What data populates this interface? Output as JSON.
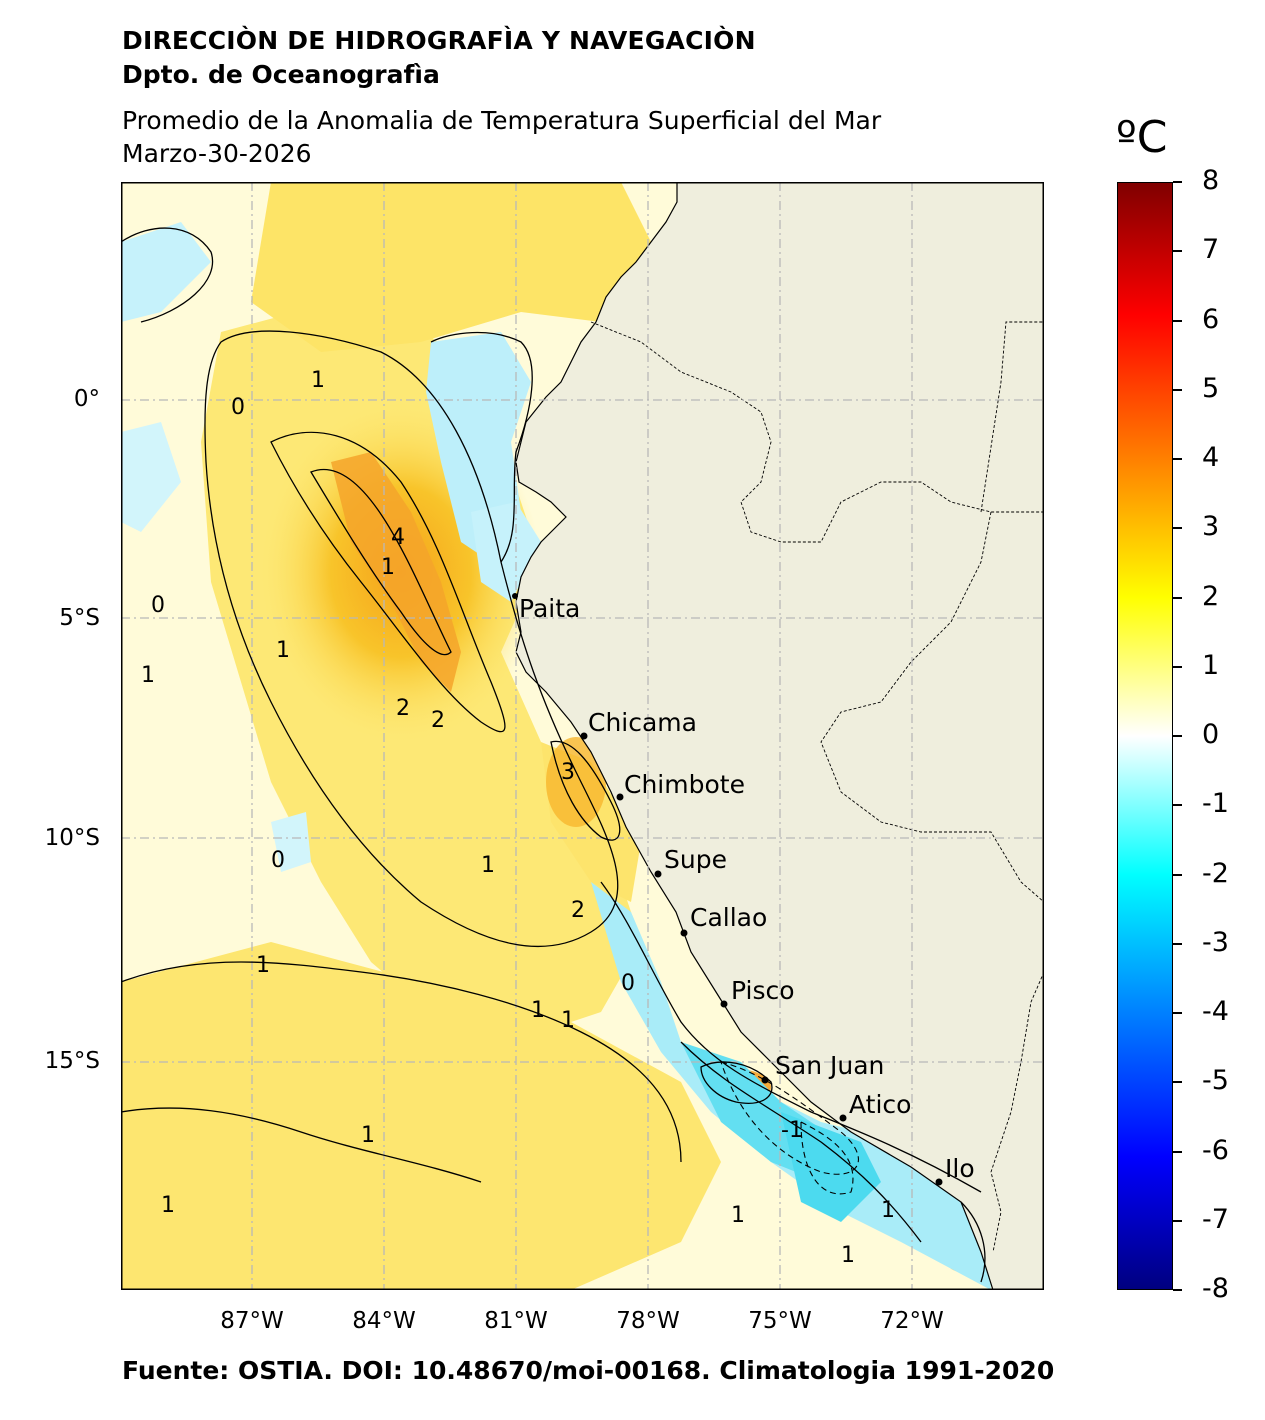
{
  "header": {
    "institution": "DIRECCIÒN DE HIDROGRAFÌA Y NAVEGACIÒN",
    "department": "Dpto. de Oceanografìa",
    "product": "Promedio de la Anomalia de Temperatura Superficial del Mar",
    "date": "Marzo-30-2026"
  },
  "colorbar": {
    "unit": "ºC",
    "ticks": [
      "8",
      "7",
      "6",
      "5",
      "4",
      "3",
      "2",
      "1",
      "0",
      "-1",
      "-2",
      "-3",
      "-4",
      "-5",
      "-6",
      "-7",
      "-8"
    ],
    "range": [
      -8,
      8
    ],
    "colors": [
      "#00007f",
      "#0000ff",
      "#0080ff",
      "#00ffff",
      "#ffffff",
      "#ffff00",
      "#ff8000",
      "#ff0000",
      "#7f0000"
    ]
  },
  "axes": {
    "lat_labels": [
      "0°",
      "5°S",
      "10°S",
      "15°S"
    ],
    "lon_labels": [
      "87°W",
      "84°W",
      "81°W",
      "78°W",
      "75°W",
      "72°W"
    ]
  },
  "map": {
    "land_color": "#efeedd",
    "ocean_background": "#fffbd9",
    "cities": [
      {
        "name": "Paita",
        "lon": -81.1,
        "lat": -5.1
      },
      {
        "name": "Chicama",
        "lon": -79.4,
        "lat": -7.8
      },
      {
        "name": "Chimbote",
        "lon": -78.6,
        "lat": -9.1
      },
      {
        "name": "Supe",
        "lon": -77.8,
        "lat": -10.8
      },
      {
        "name": "Callao",
        "lon": -77.2,
        "lat": -12.1
      },
      {
        "name": "Pisco",
        "lon": -76.3,
        "lat": -13.7
      },
      {
        "name": "San Juan",
        "lon": -75.2,
        "lat": -15.4
      },
      {
        "name": "Atico",
        "lon": -73.7,
        "lat": -16.2
      },
      {
        "name": "Ilo",
        "lon": -71.3,
        "lat": -17.6
      }
    ],
    "contour_labels": [
      "0",
      "1",
      "1",
      "1",
      "1",
      "1",
      "2",
      "2",
      "2",
      "3",
      "4",
      "1",
      "0",
      "1",
      "1",
      "1",
      "0",
      "-1",
      "1",
      "1",
      "1",
      "0",
      "1"
    ]
  },
  "footer": "Fuente: OSTIA. DOI: 10.48670/moi-00168. Climatologia 1991-2020"
}
